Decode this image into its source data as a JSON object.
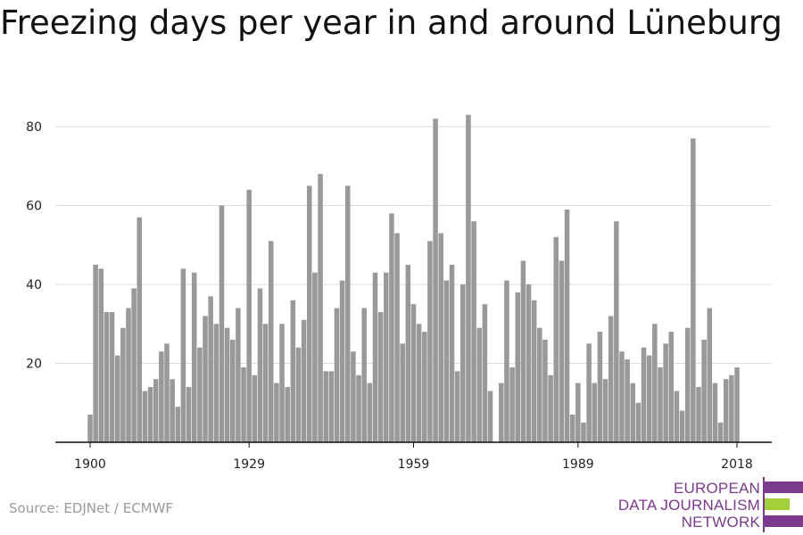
{
  "title": "Freezing days per year in and around Lüneburg",
  "source": "Source: EDJNet / ECMWF",
  "logo": {
    "line1": "EUROPEAN",
    "line2": "DATA JOURNALISM",
    "line3": "NETWORK"
  },
  "colors": {
    "bar": "#999999",
    "grid": "#dddddd",
    "axis": "#111111",
    "brand": "#7b3a8e",
    "brand_accent": "#a3d039"
  },
  "chart_data": {
    "type": "bar",
    "x_start": 1900,
    "x_end": 2018,
    "xticks": [
      1900,
      1929,
      1959,
      1989,
      2018
    ],
    "yticks": [
      20,
      40,
      60,
      80
    ],
    "ylim": [
      0,
      87
    ],
    "grid": true,
    "x": [
      1900,
      1901,
      1902,
      1903,
      1904,
      1905,
      1906,
      1907,
      1908,
      1909,
      1910,
      1911,
      1912,
      1913,
      1914,
      1915,
      1916,
      1917,
      1918,
      1919,
      1920,
      1921,
      1922,
      1923,
      1924,
      1925,
      1926,
      1927,
      1928,
      1929,
      1930,
      1931,
      1932,
      1933,
      1934,
      1935,
      1936,
      1937,
      1938,
      1939,
      1940,
      1941,
      1942,
      1943,
      1944,
      1945,
      1946,
      1947,
      1948,
      1949,
      1950,
      1951,
      1952,
      1953,
      1954,
      1955,
      1956,
      1957,
      1958,
      1959,
      1960,
      1961,
      1962,
      1963,
      1964,
      1965,
      1966,
      1967,
      1968,
      1969,
      1970,
      1971,
      1972,
      1973,
      1974,
      1975,
      1976,
      1977,
      1978,
      1979,
      1980,
      1981,
      1982,
      1983,
      1984,
      1985,
      1986,
      1987,
      1988,
      1989,
      1990,
      1991,
      1992,
      1993,
      1994,
      1995,
      1996,
      1997,
      1998,
      1999,
      2000,
      2001,
      2002,
      2003,
      2004,
      2005,
      2006,
      2007,
      2008,
      2009,
      2010,
      2011,
      2012,
      2013,
      2014,
      2015,
      2016,
      2017,
      2018
    ],
    "values": [
      7,
      45,
      44,
      33,
      33,
      22,
      29,
      34,
      39,
      57,
      13,
      14,
      16,
      23,
      25,
      16,
      9,
      44,
      14,
      43,
      24,
      32,
      37,
      30,
      60,
      29,
      26,
      34,
      19,
      64,
      17,
      39,
      30,
      51,
      15,
      30,
      14,
      36,
      24,
      31,
      65,
      43,
      68,
      18,
      18,
      34,
      41,
      65,
      23,
      17,
      34,
      15,
      43,
      33,
      43,
      58,
      53,
      25,
      45,
      35,
      30,
      28,
      51,
      82,
      53,
      41,
      45,
      18,
      40,
      83,
      56,
      29,
      35,
      13,
      0,
      15,
      41,
      19,
      38,
      46,
      40,
      36,
      29,
      26,
      17,
      52,
      46,
      59,
      7,
      15,
      5,
      25,
      15,
      28,
      16,
      32,
      56,
      23,
      21,
      15,
      10,
      24,
      22,
      30,
      19,
      25,
      28,
      13,
      8,
      29,
      77,
      14,
      26,
      34,
      15,
      5,
      16,
      17,
      19
    ]
  }
}
